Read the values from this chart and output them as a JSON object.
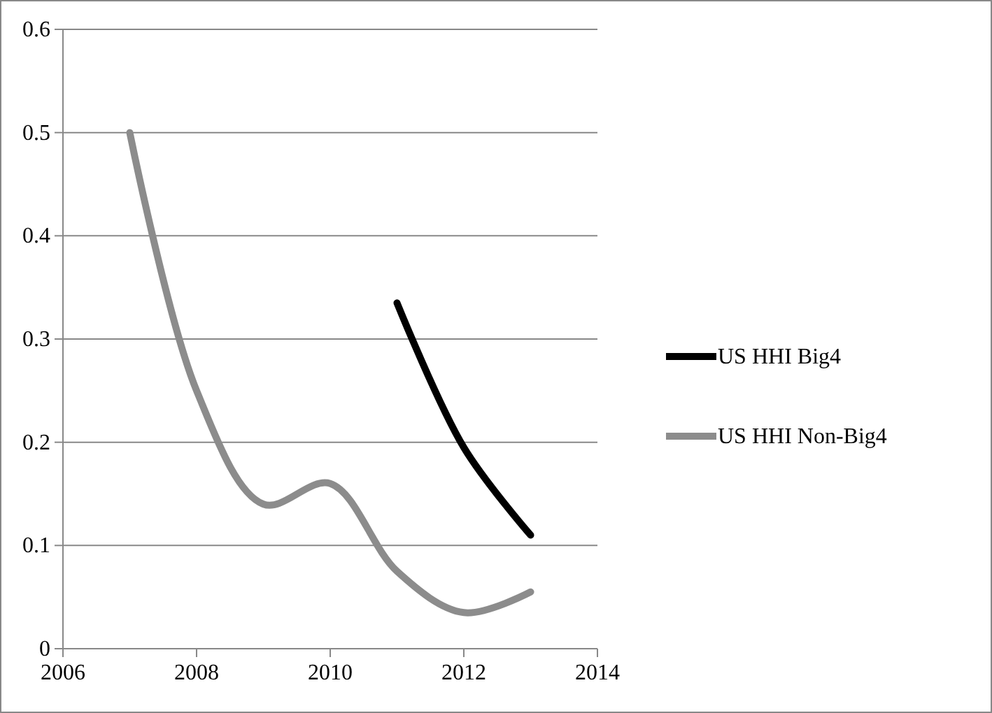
{
  "chart_data": {
    "type": "line",
    "x": [
      2007,
      2008,
      2009,
      2010,
      2011,
      2012,
      2013
    ],
    "series": [
      {
        "name": "US HHI Big4",
        "color": "#000000",
        "values": [
          null,
          null,
          null,
          null,
          0.335,
          0.195,
          0.11
        ]
      },
      {
        "name": "US HHI Non-Big4",
        "color": "#8c8c8c",
        "values": [
          0.5,
          0.25,
          0.14,
          0.16,
          0.075,
          0.035,
          0.055
        ]
      }
    ],
    "xlim": [
      2006,
      2014
    ],
    "xticks": [
      2006,
      2008,
      2010,
      2012,
      2014
    ],
    "ylim": [
      0,
      0.6
    ],
    "yticks": [
      0,
      0.1,
      0.2,
      0.3,
      0.4,
      0.5,
      0.6
    ],
    "grid": "y",
    "legend": "right",
    "marker": "none",
    "line_style": "solid"
  }
}
